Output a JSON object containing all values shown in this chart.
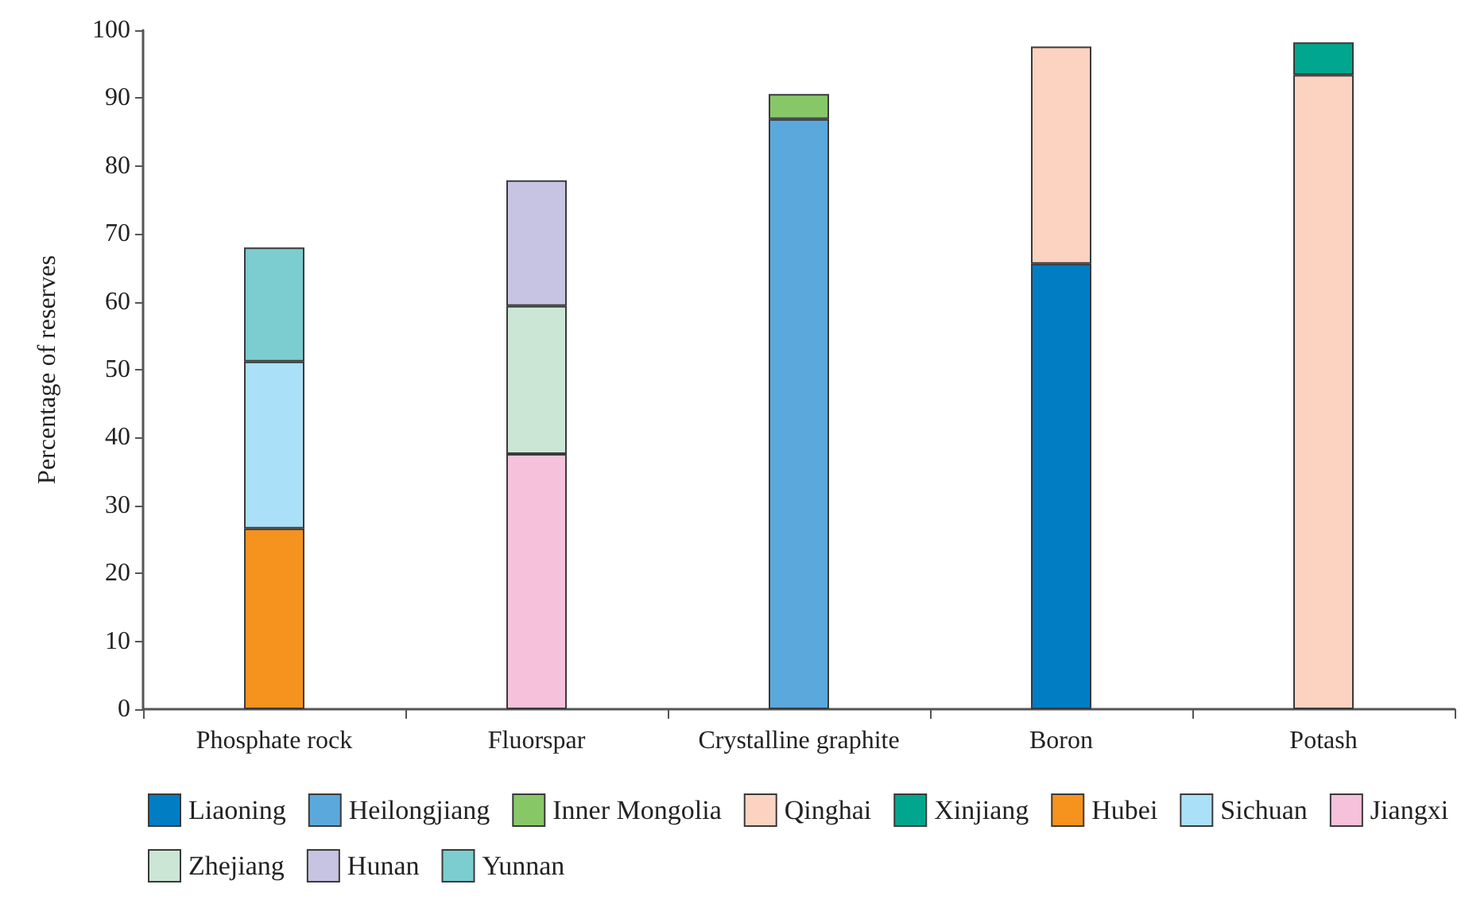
{
  "chart_data": {
    "type": "bar",
    "stacked": true,
    "ylabel": "Percentage of reserves",
    "categories": [
      "Phosphate rock",
      "Fluorspar",
      "Crystalline graphite",
      "Boron",
      "Potash"
    ],
    "ylim": [
      0,
      100
    ],
    "yticks": [
      0,
      10,
      20,
      30,
      40,
      50,
      60,
      70,
      80,
      90,
      100
    ],
    "grid": false,
    "legend": "bottom",
    "series": [
      {
        "name": "Liaoning",
        "color": "#007dc3",
        "values": [
          null,
          null,
          null,
          65.6,
          null
        ]
      },
      {
        "name": "Heilongjiang",
        "color": "#5ba8dc",
        "values": [
          null,
          null,
          86.9,
          null,
          null
        ]
      },
      {
        "name": "Inner Mongolia",
        "color": "#88c767",
        "values": [
          null,
          null,
          3.7,
          null,
          null
        ]
      },
      {
        "name": "Qinghai",
        "color": "#fcd3c1",
        "values": [
          null,
          null,
          null,
          32.0,
          93.4
        ]
      },
      {
        "name": "Xinjiang",
        "color": "#00a78e",
        "values": [
          null,
          null,
          null,
          null,
          4.8
        ]
      },
      {
        "name": "Hubei",
        "color": "#f6921e",
        "values": [
          26.6,
          null,
          null,
          null,
          null
        ]
      },
      {
        "name": "Sichuan",
        "color": "#abe0f9",
        "values": [
          24.6,
          null,
          null,
          null,
          null
        ]
      },
      {
        "name": "Jiangxi",
        "color": "#f6c1da",
        "values": [
          null,
          37.6,
          null,
          null,
          null
        ]
      },
      {
        "name": "Zhejiang",
        "color": "#cce6d5",
        "values": [
          null,
          21.8,
          null,
          null,
          null
        ]
      },
      {
        "name": "Hunan",
        "color": "#c6c4e2",
        "values": [
          null,
          18.5,
          null,
          null,
          null
        ]
      },
      {
        "name": "Yunnan",
        "color": "#7bcdcf",
        "values": [
          16.8,
          null,
          null,
          null,
          null
        ]
      }
    ]
  }
}
